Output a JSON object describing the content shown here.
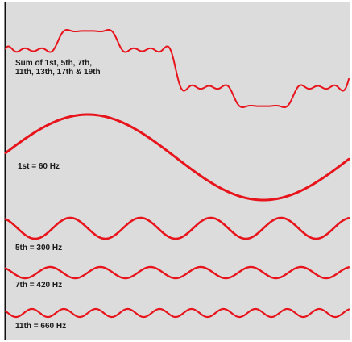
{
  "colors": {
    "background": "#dcdcdc",
    "wave": "#e8141c",
    "frame": "#111111",
    "text": "#1a1a1a"
  },
  "sum": {
    "label_line1": "Sum of 1st, 5th, 7th,",
    "label_line2": "11th, 13th, 17th & 19th",
    "harmonics": [
      1,
      5,
      7,
      11,
      13,
      17,
      19
    ]
  },
  "harmonics": [
    {
      "id": "h1",
      "label": "1st = 60 Hz",
      "order": 1,
      "frequency_hz": 60
    },
    {
      "id": "h5",
      "label": "5th = 300 Hz",
      "order": 5,
      "frequency_hz": 300
    },
    {
      "id": "h7",
      "label": "7th = 420 Hz",
      "order": 7,
      "frequency_hz": 420
    },
    {
      "id": "h11",
      "label": "11th = 660 Hz",
      "order": 11,
      "frequency_hz": 660
    }
  ]
}
